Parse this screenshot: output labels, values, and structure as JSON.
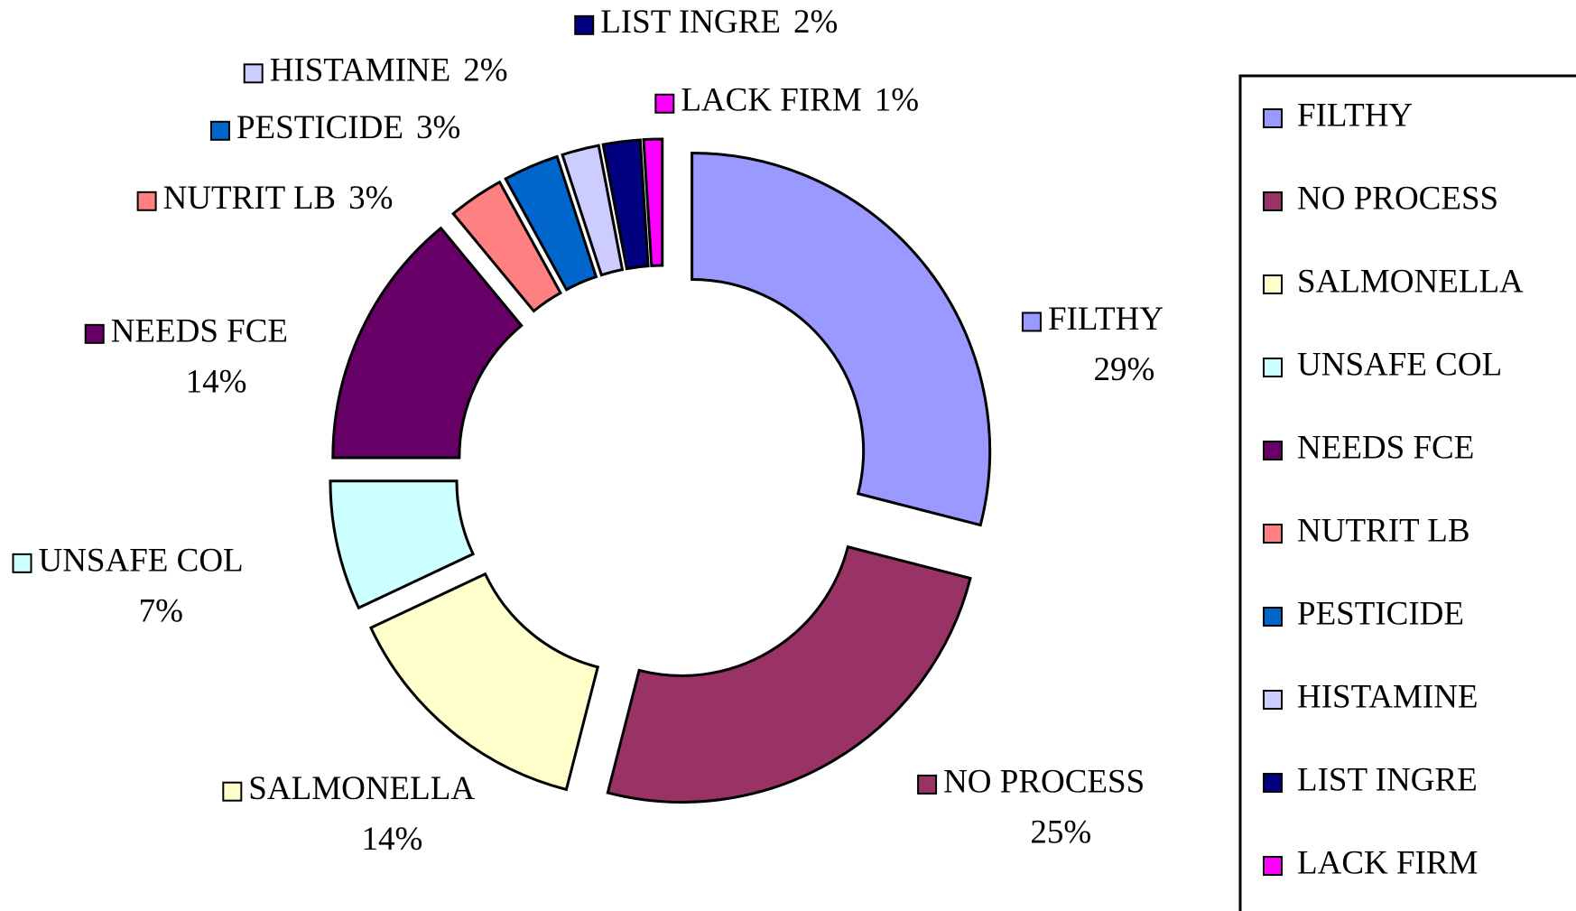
{
  "chart_data": {
    "type": "donut",
    "categories": [
      "FILTHY",
      "NO PROCESS",
      "SALMONELLA",
      "UNSAFE COL",
      "NEEDS FCE",
      "NUTRIT LB",
      "PESTICIDE",
      "HISTAMINE",
      "LIST INGRE",
      "LACK FIRM"
    ],
    "values": [
      29,
      25,
      14,
      7,
      14,
      3,
      3,
      2,
      2,
      1
    ],
    "value_labels": [
      "29%",
      "25%",
      "14%",
      "7%",
      "14%",
      "3%",
      "3%",
      "2%",
      "2%",
      "1%"
    ],
    "colors": [
      "#9999ff",
      "#993366",
      "#ffffcc",
      "#ccffff",
      "#660066",
      "#ff8080",
      "#0066cc",
      "#ccccff",
      "#000080",
      "#ff00ff"
    ],
    "legend": "right"
  }
}
